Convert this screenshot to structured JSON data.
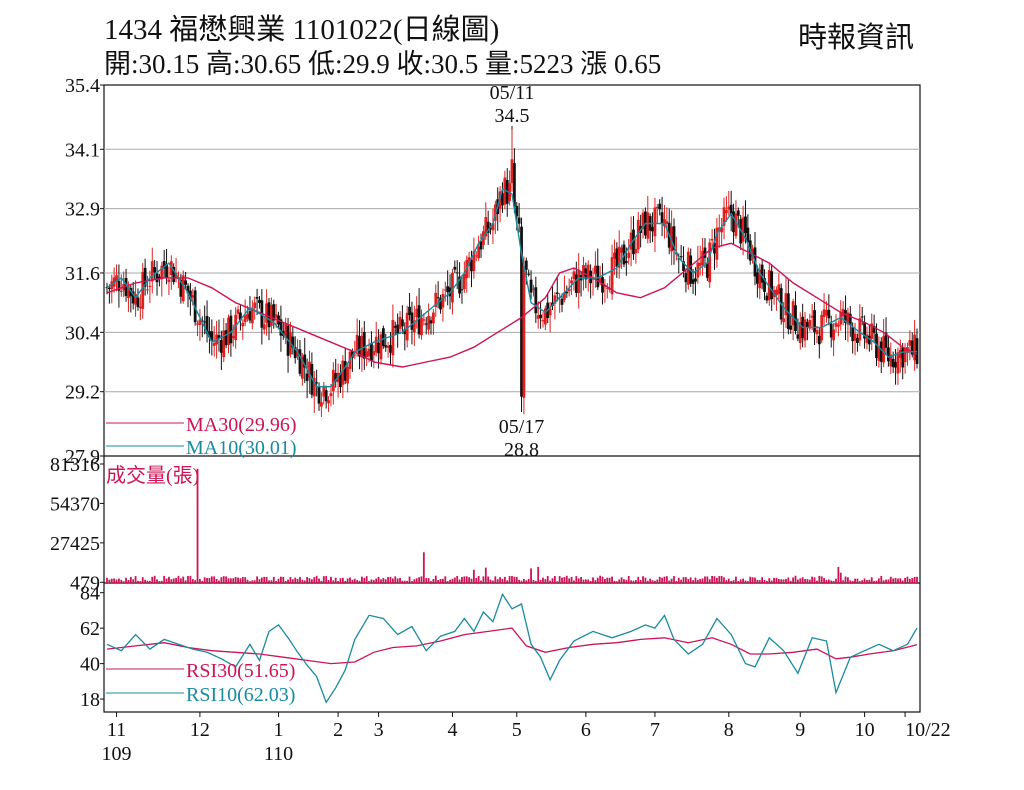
{
  "header": {
    "title": "1434  福懋興業 1101022(日線圖)",
    "quote": "開:30.15 高:30.65 低:29.9 收:30.5 量:5223 漲 0.65",
    "source": "時報資訊"
  },
  "colors": {
    "up": "#e02020",
    "down": "#111111",
    "ma30": "#cc1458",
    "ma10": "#1a8aa0",
    "rsi30": "#cc1458",
    "rsi10": "#1a8aa0",
    "volume": "#cc1458",
    "grid": "#aaaaaa"
  },
  "chart_data": [
    {
      "type": "candlestick",
      "name": "price",
      "ylim": [
        27.9,
        35.4
      ],
      "yticks": [
        "35.4",
        "34.1",
        "32.9",
        "31.6",
        "30.4",
        "29.2",
        "27.9"
      ],
      "ytick_values": [
        35.4,
        34.1,
        32.9,
        31.6,
        30.4,
        29.2,
        27.9
      ],
      "grid": true,
      "legend_position": "bottom-left",
      "annotations": [
        {
          "date": "05/11",
          "value": "34.5",
          "kind": "high"
        },
        {
          "date": "05/17",
          "value": "28.8",
          "kind": "low"
        }
      ],
      "series": [
        {
          "name": "MA30(29.96)",
          "key": "ma30",
          "points": [
            [
              0,
              31.2
            ],
            [
              12,
              31.4
            ],
            [
              24,
              31.5
            ],
            [
              34,
              31.5
            ],
            [
              44,
              31.3
            ],
            [
              54,
              31.0
            ],
            [
              64,
              30.8
            ],
            [
              74,
              30.6
            ],
            [
              84,
              30.4
            ],
            [
              94,
              30.2
            ],
            [
              104,
              30.0
            ],
            [
              112,
              29.8
            ],
            [
              124,
              29.7
            ],
            [
              134,
              29.8
            ],
            [
              144,
              29.9
            ],
            [
              154,
              30.1
            ],
            [
              164,
              30.4
            ],
            [
              174,
              30.7
            ],
            [
              184,
              31.1
            ],
            [
              190,
              31.6
            ],
            [
              196,
              31.7
            ],
            [
              204,
              31.5
            ],
            [
              214,
              31.2
            ],
            [
              224,
              31.1
            ],
            [
              234,
              31.3
            ],
            [
              244,
              31.7
            ],
            [
              254,
              32.1
            ],
            [
              262,
              32.2
            ],
            [
              270,
              32.0
            ],
            [
              278,
              31.8
            ],
            [
              288,
              31.4
            ],
            [
              298,
              31.1
            ],
            [
              308,
              30.8
            ],
            [
              318,
              30.6
            ],
            [
              326,
              30.4
            ],
            [
              334,
              30.1
            ],
            [
              340,
              29.96
            ]
          ]
        },
        {
          "name": "MA10(30.01)",
          "key": "ma10",
          "points": [
            [
              0,
              31.3
            ],
            [
              6,
              31.5
            ],
            [
              12,
              31.1
            ],
            [
              18,
              31.5
            ],
            [
              26,
              31.8
            ],
            [
              34,
              31.2
            ],
            [
              44,
              30.2
            ],
            [
              52,
              30.4
            ],
            [
              60,
              30.9
            ],
            [
              70,
              30.6
            ],
            [
              80,
              30.0
            ],
            [
              88,
              29.3
            ],
            [
              94,
              29.3
            ],
            [
              100,
              29.7
            ],
            [
              104,
              30.0
            ],
            [
              112,
              30.2
            ],
            [
              124,
              30.4
            ],
            [
              134,
              30.8
            ],
            [
              144,
              31.2
            ],
            [
              150,
              31.6
            ],
            [
              156,
              32.2
            ],
            [
              162,
              32.6
            ],
            [
              166,
              33.3
            ],
            [
              170,
              33.2
            ],
            [
              174,
              32.0
            ],
            [
              178,
              31.0
            ],
            [
              184,
              30.8
            ],
            [
              190,
              31.1
            ],
            [
              198,
              31.5
            ],
            [
              206,
              31.5
            ],
            [
              214,
              31.7
            ],
            [
              220,
              32.2
            ],
            [
              226,
              32.6
            ],
            [
              234,
              32.6
            ],
            [
              240,
              31.9
            ],
            [
              246,
              31.6
            ],
            [
              252,
              31.8
            ],
            [
              256,
              32.4
            ],
            [
              262,
              32.8
            ],
            [
              268,
              32.3
            ],
            [
              274,
              31.6
            ],
            [
              284,
              30.9
            ],
            [
              292,
              30.5
            ],
            [
              300,
              30.5
            ],
            [
              308,
              30.7
            ],
            [
              316,
              30.4
            ],
            [
              322,
              30.2
            ],
            [
              328,
              29.9
            ],
            [
              334,
              30.0
            ],
            [
              340,
              30.01
            ]
          ]
        }
      ]
    },
    {
      "type": "bar",
      "name": "成交量(張)",
      "ylim": [
        0,
        81316
      ],
      "yticks": [
        "81316",
        "54370",
        "27425",
        "479"
      ],
      "ytick_values": [
        81316,
        54370,
        27425,
        479
      ],
      "spikes": [
        {
          "index": 38,
          "value": 78000
        },
        {
          "index": 133,
          "value": 21000
        },
        {
          "index": 154,
          "value": 9000
        },
        {
          "index": 159,
          "value": 10500
        },
        {
          "index": 178,
          "value": 10000
        },
        {
          "index": 181,
          "value": 11000
        },
        {
          "index": 307,
          "value": 11000
        },
        {
          "index": 308,
          "value": 7000
        }
      ]
    },
    {
      "type": "line",
      "name": "RSI",
      "ylim": [
        10,
        90
      ],
      "yticks": [
        "84",
        "62",
        "40",
        "18"
      ],
      "ytick_values": [
        84,
        62,
        40,
        18
      ],
      "series": [
        {
          "name": "RSI30(51.65)",
          "key": "rsi30",
          "points": [
            [
              0,
              49
            ],
            [
              12,
              51
            ],
            [
              24,
              53
            ],
            [
              34,
              50
            ],
            [
              44,
              48
            ],
            [
              54,
              47
            ],
            [
              64,
              46
            ],
            [
              74,
              44
            ],
            [
              84,
              42
            ],
            [
              94,
              40
            ],
            [
              104,
              41
            ],
            [
              112,
              47
            ],
            [
              120,
              50
            ],
            [
              130,
              51
            ],
            [
              140,
              54
            ],
            [
              150,
              58
            ],
            [
              160,
              60
            ],
            [
              170,
              62
            ],
            [
              176,
              51
            ],
            [
              184,
              47
            ],
            [
              194,
              50
            ],
            [
              204,
              52
            ],
            [
              214,
              53
            ],
            [
              224,
              55
            ],
            [
              234,
              56
            ],
            [
              244,
              53
            ],
            [
              254,
              56
            ],
            [
              262,
              52
            ],
            [
              270,
              46
            ],
            [
              278,
              46
            ],
            [
              288,
              47
            ],
            [
              298,
              49
            ],
            [
              306,
              43
            ],
            [
              312,
              44
            ],
            [
              320,
              46
            ],
            [
              330,
              48
            ],
            [
              340,
              51.65
            ]
          ]
        },
        {
          "name": "RSI10(62.03)",
          "key": "rsi10",
          "points": [
            [
              0,
              52
            ],
            [
              6,
              48
            ],
            [
              12,
              58
            ],
            [
              18,
              49
            ],
            [
              24,
              55
            ],
            [
              30,
              52
            ],
            [
              36,
              49
            ],
            [
              42,
              47
            ],
            [
              48,
              43
            ],
            [
              54,
              38
            ],
            [
              60,
              52
            ],
            [
              64,
              42
            ],
            [
              68,
              60
            ],
            [
              72,
              64
            ],
            [
              76,
              56
            ],
            [
              80,
              47
            ],
            [
              84,
              39
            ],
            [
              88,
              32
            ],
            [
              92,
              16
            ],
            [
              96,
              25
            ],
            [
              100,
              36
            ],
            [
              104,
              55
            ],
            [
              110,
              70
            ],
            [
              116,
              68
            ],
            [
              122,
              58
            ],
            [
              128,
              63
            ],
            [
              134,
              48
            ],
            [
              140,
              57
            ],
            [
              146,
              60
            ],
            [
              150,
              68
            ],
            [
              154,
              60
            ],
            [
              158,
              72
            ],
            [
              162,
              66
            ],
            [
              166,
              83
            ],
            [
              170,
              74
            ],
            [
              174,
              77
            ],
            [
              178,
              52
            ],
            [
              182,
              44
            ],
            [
              186,
              30
            ],
            [
              190,
              42
            ],
            [
              196,
              54
            ],
            [
              204,
              60
            ],
            [
              212,
              56
            ],
            [
              220,
              60
            ],
            [
              226,
              64
            ],
            [
              230,
              62
            ],
            [
              234,
              70
            ],
            [
              238,
              55
            ],
            [
              244,
              46
            ],
            [
              250,
              52
            ],
            [
              256,
              68
            ],
            [
              262,
              58
            ],
            [
              268,
              40
            ],
            [
              272,
              38
            ],
            [
              278,
              56
            ],
            [
              284,
              48
            ],
            [
              290,
              34
            ],
            [
              296,
              56
            ],
            [
              302,
              54
            ],
            [
              306,
              22
            ],
            [
              312,
              44
            ],
            [
              318,
              48
            ],
            [
              324,
              52
            ],
            [
              330,
              48
            ],
            [
              336,
              52
            ],
            [
              340,
              62.03
            ]
          ]
        }
      ]
    }
  ],
  "xaxis": {
    "month_labels": [
      {
        "label": "11",
        "index": 4
      },
      {
        "label": "12",
        "index": 39
      },
      {
        "label": "1",
        "index": 72
      },
      {
        "label": "2",
        "index": 97
      },
      {
        "label": "3",
        "index": 114
      },
      {
        "label": "4",
        "index": 145
      },
      {
        "label": "5",
        "index": 172
      },
      {
        "label": "6",
        "index": 201
      },
      {
        "label": "7",
        "index": 230
      },
      {
        "label": "8",
        "index": 261
      },
      {
        "label": "9",
        "index": 291
      },
      {
        "label": "10",
        "index": 318
      },
      {
        "label": "10/22",
        "index": 335
      }
    ],
    "year_labels": [
      {
        "label": "109",
        "index": 4
      },
      {
        "label": "110",
        "index": 72
      }
    ]
  }
}
